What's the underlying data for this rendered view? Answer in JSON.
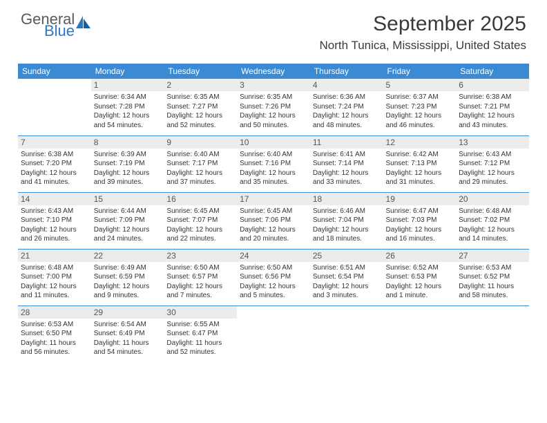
{
  "logo": {
    "general": "General",
    "blue": "Blue"
  },
  "title": "September 2025",
  "location": "North Tunica, Mississippi, United States",
  "colors": {
    "header_bg": "#3b8bd4",
    "header_text": "#ffffff",
    "daynum_bg": "#ececec",
    "border": "#3b8bd4",
    "logo_blue": "#2b78c5",
    "logo_gray": "#5a5a5a"
  },
  "day_headers": [
    "Sunday",
    "Monday",
    "Tuesday",
    "Wednesday",
    "Thursday",
    "Friday",
    "Saturday"
  ],
  "weeks": [
    [
      null,
      {
        "n": "1",
        "sr": "6:34 AM",
        "ss": "7:28 PM",
        "dl": "12 hours and 54 minutes."
      },
      {
        "n": "2",
        "sr": "6:35 AM",
        "ss": "7:27 PM",
        "dl": "12 hours and 52 minutes."
      },
      {
        "n": "3",
        "sr": "6:35 AM",
        "ss": "7:26 PM",
        "dl": "12 hours and 50 minutes."
      },
      {
        "n": "4",
        "sr": "6:36 AM",
        "ss": "7:24 PM",
        "dl": "12 hours and 48 minutes."
      },
      {
        "n": "5",
        "sr": "6:37 AM",
        "ss": "7:23 PM",
        "dl": "12 hours and 46 minutes."
      },
      {
        "n": "6",
        "sr": "6:38 AM",
        "ss": "7:21 PM",
        "dl": "12 hours and 43 minutes."
      }
    ],
    [
      {
        "n": "7",
        "sr": "6:38 AM",
        "ss": "7:20 PM",
        "dl": "12 hours and 41 minutes."
      },
      {
        "n": "8",
        "sr": "6:39 AM",
        "ss": "7:19 PM",
        "dl": "12 hours and 39 minutes."
      },
      {
        "n": "9",
        "sr": "6:40 AM",
        "ss": "7:17 PM",
        "dl": "12 hours and 37 minutes."
      },
      {
        "n": "10",
        "sr": "6:40 AM",
        "ss": "7:16 PM",
        "dl": "12 hours and 35 minutes."
      },
      {
        "n": "11",
        "sr": "6:41 AM",
        "ss": "7:14 PM",
        "dl": "12 hours and 33 minutes."
      },
      {
        "n": "12",
        "sr": "6:42 AM",
        "ss": "7:13 PM",
        "dl": "12 hours and 31 minutes."
      },
      {
        "n": "13",
        "sr": "6:43 AM",
        "ss": "7:12 PM",
        "dl": "12 hours and 29 minutes."
      }
    ],
    [
      {
        "n": "14",
        "sr": "6:43 AM",
        "ss": "7:10 PM",
        "dl": "12 hours and 26 minutes."
      },
      {
        "n": "15",
        "sr": "6:44 AM",
        "ss": "7:09 PM",
        "dl": "12 hours and 24 minutes."
      },
      {
        "n": "16",
        "sr": "6:45 AM",
        "ss": "7:07 PM",
        "dl": "12 hours and 22 minutes."
      },
      {
        "n": "17",
        "sr": "6:45 AM",
        "ss": "7:06 PM",
        "dl": "12 hours and 20 minutes."
      },
      {
        "n": "18",
        "sr": "6:46 AM",
        "ss": "7:04 PM",
        "dl": "12 hours and 18 minutes."
      },
      {
        "n": "19",
        "sr": "6:47 AM",
        "ss": "7:03 PM",
        "dl": "12 hours and 16 minutes."
      },
      {
        "n": "20",
        "sr": "6:48 AM",
        "ss": "7:02 PM",
        "dl": "12 hours and 14 minutes."
      }
    ],
    [
      {
        "n": "21",
        "sr": "6:48 AM",
        "ss": "7:00 PM",
        "dl": "12 hours and 11 minutes."
      },
      {
        "n": "22",
        "sr": "6:49 AM",
        "ss": "6:59 PM",
        "dl": "12 hours and 9 minutes."
      },
      {
        "n": "23",
        "sr": "6:50 AM",
        "ss": "6:57 PM",
        "dl": "12 hours and 7 minutes."
      },
      {
        "n": "24",
        "sr": "6:50 AM",
        "ss": "6:56 PM",
        "dl": "12 hours and 5 minutes."
      },
      {
        "n": "25",
        "sr": "6:51 AM",
        "ss": "6:54 PM",
        "dl": "12 hours and 3 minutes."
      },
      {
        "n": "26",
        "sr": "6:52 AM",
        "ss": "6:53 PM",
        "dl": "12 hours and 1 minute."
      },
      {
        "n": "27",
        "sr": "6:53 AM",
        "ss": "6:52 PM",
        "dl": "11 hours and 58 minutes."
      }
    ],
    [
      {
        "n": "28",
        "sr": "6:53 AM",
        "ss": "6:50 PM",
        "dl": "11 hours and 56 minutes."
      },
      {
        "n": "29",
        "sr": "6:54 AM",
        "ss": "6:49 PM",
        "dl": "11 hours and 54 minutes."
      },
      {
        "n": "30",
        "sr": "6:55 AM",
        "ss": "6:47 PM",
        "dl": "11 hours and 52 minutes."
      },
      null,
      null,
      null,
      null
    ]
  ],
  "labels": {
    "sunrise": "Sunrise:",
    "sunset": "Sunset:",
    "daylight": "Daylight:"
  }
}
